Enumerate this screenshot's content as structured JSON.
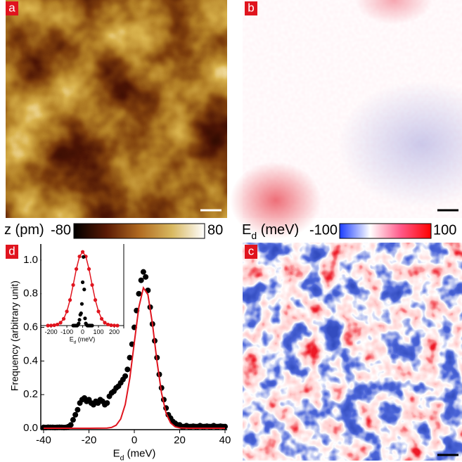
{
  "panel_labels": [
    "a",
    "b",
    "c",
    "d"
  ],
  "colorbars": [
    {
      "label": [
        "z (pm)"
      ],
      "min": -80,
      "max": 80,
      "colors": [
        "#000000",
        "#5a1a05",
        "#b06a20",
        "#d8b860",
        "#ffffff"
      ]
    },
    {
      "label": [
        "E",
        "d",
        " (meV)"
      ],
      "min": -100,
      "max": 100,
      "colors": [
        "#1a3cff",
        "#ffffff",
        "#ff5a8a",
        "#ff0000"
      ]
    }
  ],
  "chart_data": [
    {
      "type": "scatter",
      "xlabel": [
        "E",
        "d",
        " (meV)"
      ],
      "ylabel": "Frequency (arbitrary unit)",
      "xlim": [
        -40,
        40
      ],
      "ylim": [
        0,
        1.1
      ],
      "xticks": [
        -40,
        -20,
        0,
        20,
        40
      ],
      "yticks": [
        {
          "value": 0,
          "label": "0.0"
        },
        0.2,
        0.4,
        0.6,
        0.8,
        {
          "value": 1,
          "label": "1.0"
        }
      ],
      "series": [
        {
          "color": "#000000",
          "markers": true,
          "line": false,
          "x": [
            -40,
            -39,
            -38,
            -37,
            -36,
            -35,
            -34,
            -33,
            -32,
            -31,
            -30,
            -29,
            -28,
            -27,
            -26,
            -25,
            -24,
            -23,
            -22,
            -21,
            -20,
            -19,
            -18,
            -17,
            -16,
            -15,
            -14,
            -13,
            -12,
            -11,
            -10,
            -9,
            -8,
            -7,
            -6,
            -5,
            -4,
            -3,
            -2,
            -1,
            0,
            1,
            2,
            3,
            4,
            5,
            6,
            7,
            8,
            9,
            10,
            11,
            12,
            13,
            14,
            15,
            16,
            17,
            18,
            19,
            20,
            21,
            22,
            23,
            24,
            25,
            26,
            27,
            28,
            29,
            30,
            31,
            32,
            33,
            34,
            35,
            36,
            37,
            38,
            39,
            40
          ],
          "values": [
            0.005,
            0.004,
            0.006,
            0.005,
            0.005,
            0.004,
            0.005,
            0.006,
            0.005,
            0.004,
            0.005,
            0.01,
            0.02,
            0.05,
            0.08,
            0.11,
            0.15,
            0.17,
            0.18,
            0.16,
            0.17,
            0.15,
            0.14,
            0.16,
            0.15,
            0.17,
            0.16,
            0.14,
            0.15,
            0.19,
            0.21,
            0.22,
            0.24,
            0.25,
            0.27,
            0.29,
            0.31,
            0.35,
            0.42,
            0.5,
            0.6,
            0.7,
            0.8,
            0.88,
            0.93,
            0.9,
            0.82,
            0.72,
            0.62,
            0.52,
            0.42,
            0.32,
            0.24,
            0.17,
            0.12,
            0.08,
            0.06,
            0.04,
            0.03,
            0.02,
            0.02,
            0.01,
            0.01,
            0.015,
            0.01,
            0.01,
            0.012,
            0.01,
            0.01,
            0.015,
            0.01,
            0.01,
            0.012,
            0.01,
            0.01,
            0.015,
            0.01,
            0.01,
            0.012,
            0.01,
            0.01
          ]
        },
        {
          "color": "#e0141e",
          "markers": false,
          "line": true,
          "x": [
            -40,
            -20,
            -12,
            -10,
            -8,
            -6,
            -4,
            -2,
            0,
            2,
            4,
            6,
            8,
            10,
            12,
            14,
            16,
            18,
            20,
            24,
            30,
            40
          ],
          "values": [
            0,
            0,
            0.001,
            0.005,
            0.018,
            0.055,
            0.141,
            0.296,
            0.51,
            0.72,
            0.835,
            0.795,
            0.621,
            0.398,
            0.21,
            0.09,
            0.032,
            0.009,
            0.002,
            0,
            0,
            0
          ]
        }
      ]
    },
    {
      "type": "scatter",
      "xlabel": [
        "E",
        "d",
        " (meV)"
      ],
      "xlim": [
        -265,
        260
      ],
      "ylim": [
        0,
        1.1
      ],
      "xticks": [
        -200,
        -100,
        0,
        100,
        200
      ],
      "series": [
        {
          "color": "#e0141e",
          "markers": true,
          "line": true,
          "x": [
            -220,
            -200,
            -180,
            -160,
            -140,
            -120,
            -100,
            -80,
            -60,
            -40,
            -20,
            0,
            20,
            40,
            60,
            80,
            100,
            120,
            140,
            160,
            180,
            200,
            220
          ],
          "values": [
            0,
            0.002,
            0.005,
            0.015,
            0.04,
            0.094,
            0.196,
            0.354,
            0.562,
            0.783,
            0.957,
            1.02,
            0.957,
            0.783,
            0.562,
            0.354,
            0.196,
            0.094,
            0.04,
            0.015,
            0.005,
            0.002,
            0
          ]
        },
        {
          "color": "#000000",
          "markers": true,
          "line": false,
          "x": [
            -60,
            -55,
            -50,
            -45,
            -40,
            -35,
            -30,
            -25,
            -20,
            -15,
            -10,
            -5,
            0,
            5,
            10,
            15,
            20,
            25,
            30,
            35,
            40,
            45,
            50,
            55,
            60
          ],
          "values": [
            0,
            0,
            0,
            0,
            0,
            0,
            0.01,
            0.03,
            0.08,
            0.15,
            0.17,
            0.3,
            0.6,
            0.95,
            0.5,
            0.1,
            0.03,
            0.01,
            0,
            0,
            0,
            0,
            0,
            0,
            0
          ]
        }
      ]
    }
  ]
}
